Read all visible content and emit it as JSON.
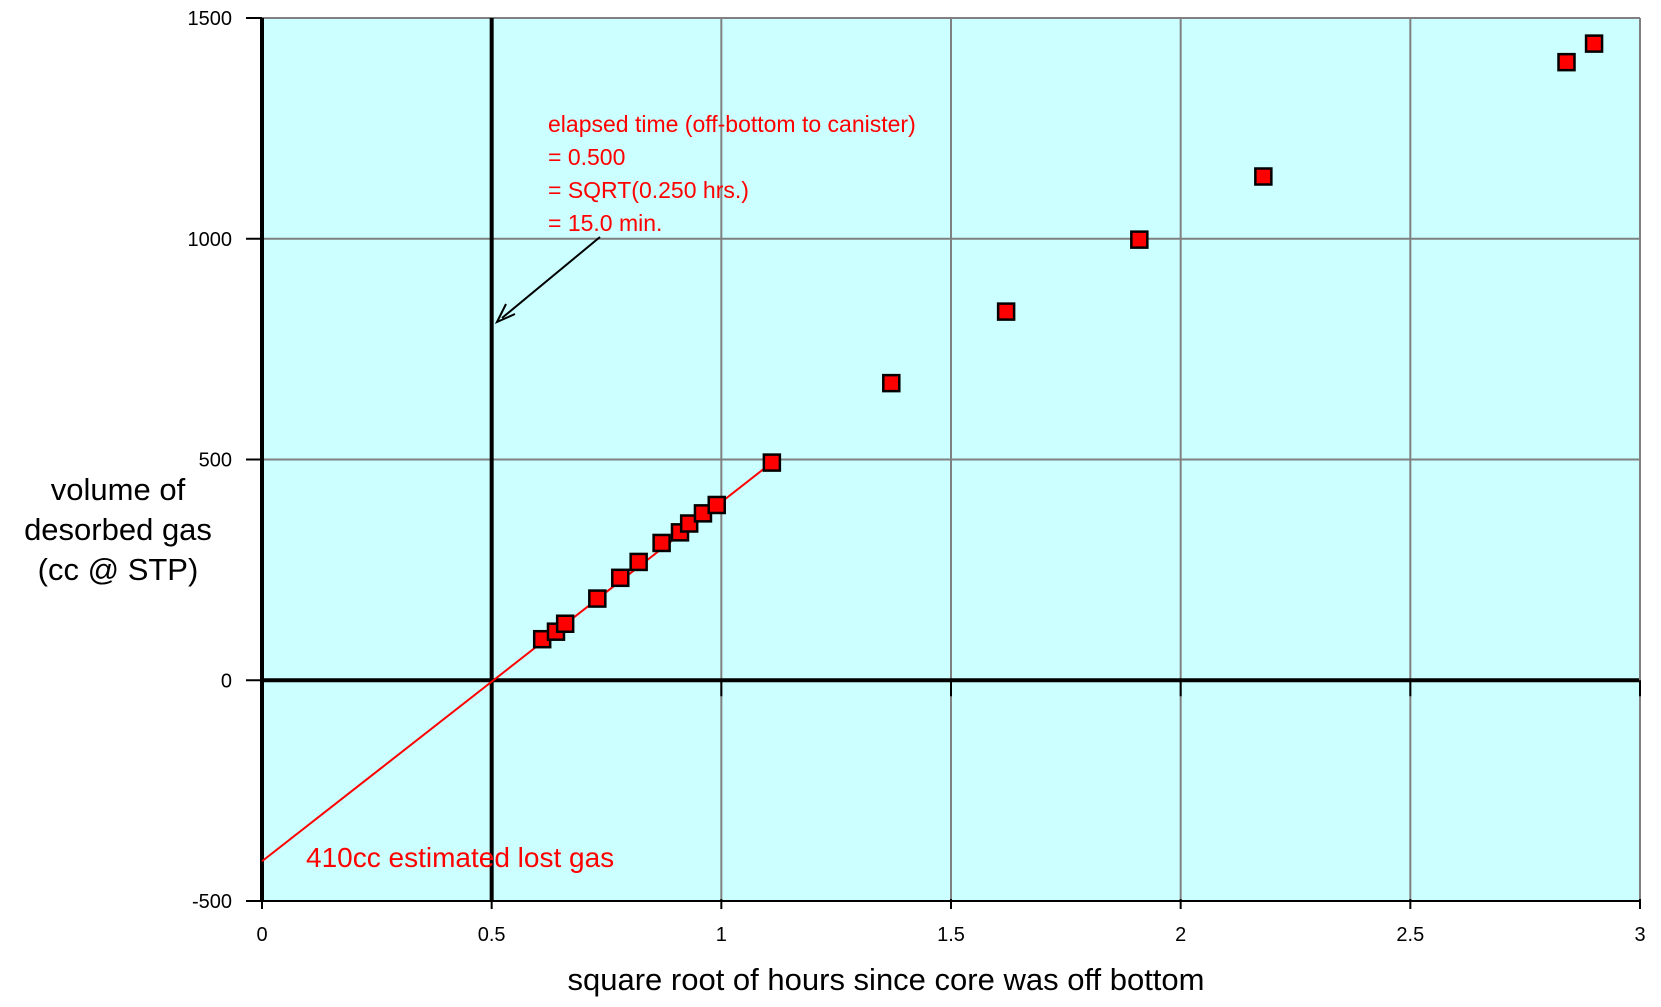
{
  "chart_data": {
    "type": "scatter",
    "title": "",
    "xlabel": "square root of hours since core was off bottom",
    "ylabel_lines": [
      "volume of",
      "desorbed gas",
      "(cc @ STP)"
    ],
    "xlim": [
      0,
      3
    ],
    "ylim": [
      -500,
      1500
    ],
    "x_ticks": [
      0,
      0.5,
      1,
      1.5,
      2,
      2.5,
      3
    ],
    "x_tick_labels": [
      "0",
      "0.5",
      "1",
      "1.5",
      "2",
      "2.5",
      "3"
    ],
    "y_ticks": [
      -500,
      0,
      500,
      1000,
      1500
    ],
    "y_tick_labels": [
      "-500",
      "0",
      "500",
      "1000",
      "1500"
    ],
    "grid": true,
    "background_color": "#ccffff",
    "marker_color": "#ff0000",
    "line_color": "#ff0000",
    "points": [
      {
        "x": 0.61,
        "y": 93
      },
      {
        "x": 0.64,
        "y": 110
      },
      {
        "x": 0.66,
        "y": 128
      },
      {
        "x": 0.73,
        "y": 185
      },
      {
        "x": 0.78,
        "y": 232
      },
      {
        "x": 0.82,
        "y": 268
      },
      {
        "x": 0.87,
        "y": 311
      },
      {
        "x": 0.91,
        "y": 335
      },
      {
        "x": 0.93,
        "y": 355
      },
      {
        "x": 0.96,
        "y": 378
      },
      {
        "x": 0.99,
        "y": 397
      },
      {
        "x": 1.11,
        "y": 493
      },
      {
        "x": 1.37,
        "y": 673
      },
      {
        "x": 1.62,
        "y": 835
      },
      {
        "x": 1.91,
        "y": 998
      },
      {
        "x": 2.18,
        "y": 1141
      },
      {
        "x": 2.84,
        "y": 1400
      },
      {
        "x": 2.9,
        "y": 1442
      }
    ],
    "fit_line": {
      "x": [
        0,
        1.11
      ],
      "y": [
        -410,
        493
      ]
    },
    "elapsed_time_line_x": 0.5,
    "annotations": {
      "elapsed": [
        "elapsed time (off-bottom to canister)",
        "= 0.500",
        "= SQRT(0.250 hrs.)",
        "= 15.0 min."
      ],
      "lost_gas": "410cc estimated lost gas"
    }
  }
}
